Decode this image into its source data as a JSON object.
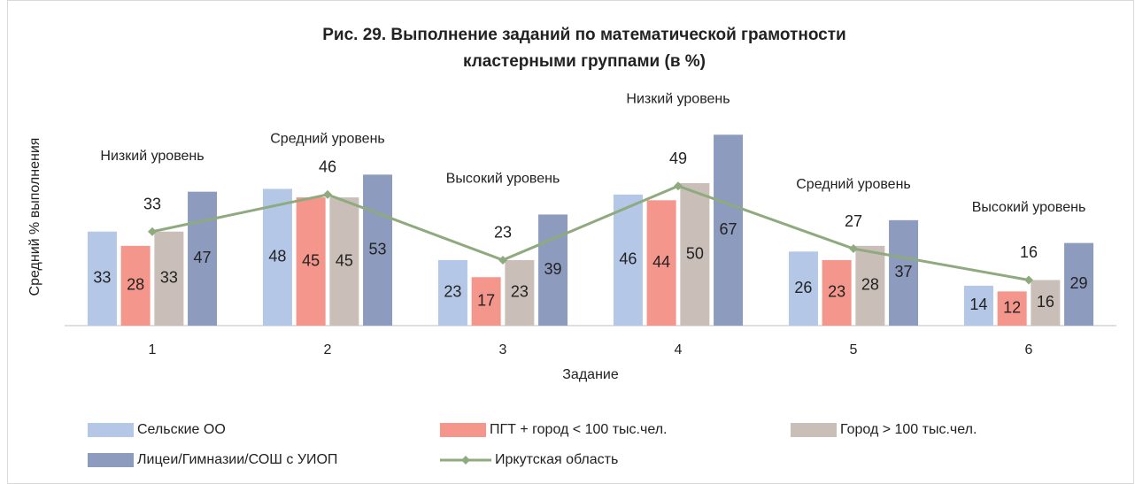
{
  "chart_data": {
    "type": "bar",
    "title": [
      "Рис. 29. Выполнение заданий по математической грамотности",
      "кластерными группами (в %)"
    ],
    "y_label": "Средний % выполнения",
    "x_label": "Задание",
    "categories": [
      "1",
      "2",
      "3",
      "4",
      "5",
      "6"
    ],
    "annotations": [
      "Низкий уровень",
      "Средний уровень",
      "Высокий уровень",
      "Низкий уровень",
      "Средний уровень",
      "Высокий уровень"
    ],
    "ylim": [
      0,
      80
    ],
    "series": [
      {
        "name": "Сельские ОО",
        "type": "bar",
        "color": "#b4c7e7",
        "values": [
          33,
          48,
          23,
          46,
          26,
          14
        ]
      },
      {
        "name": "ПГТ + город < 100 тыс.чел.",
        "type": "bar",
        "color": "#f4968b",
        "values": [
          28,
          45,
          17,
          44,
          23,
          12
        ]
      },
      {
        "name": "Город > 100 тыс.чел.",
        "type": "bar",
        "color": "#c9bfb8",
        "values": [
          33,
          45,
          23,
          50,
          28,
          16
        ]
      },
      {
        "name": "Лицеи/Гимназии/СОШ с УИОП",
        "type": "bar",
        "color": "#8d9bbf",
        "values": [
          47,
          53,
          39,
          67,
          37,
          29
        ]
      },
      {
        "name": "Иркутская область",
        "type": "line",
        "color": "#8faa7e",
        "values": [
          33,
          46,
          23,
          49,
          27,
          16
        ]
      }
    ]
  }
}
